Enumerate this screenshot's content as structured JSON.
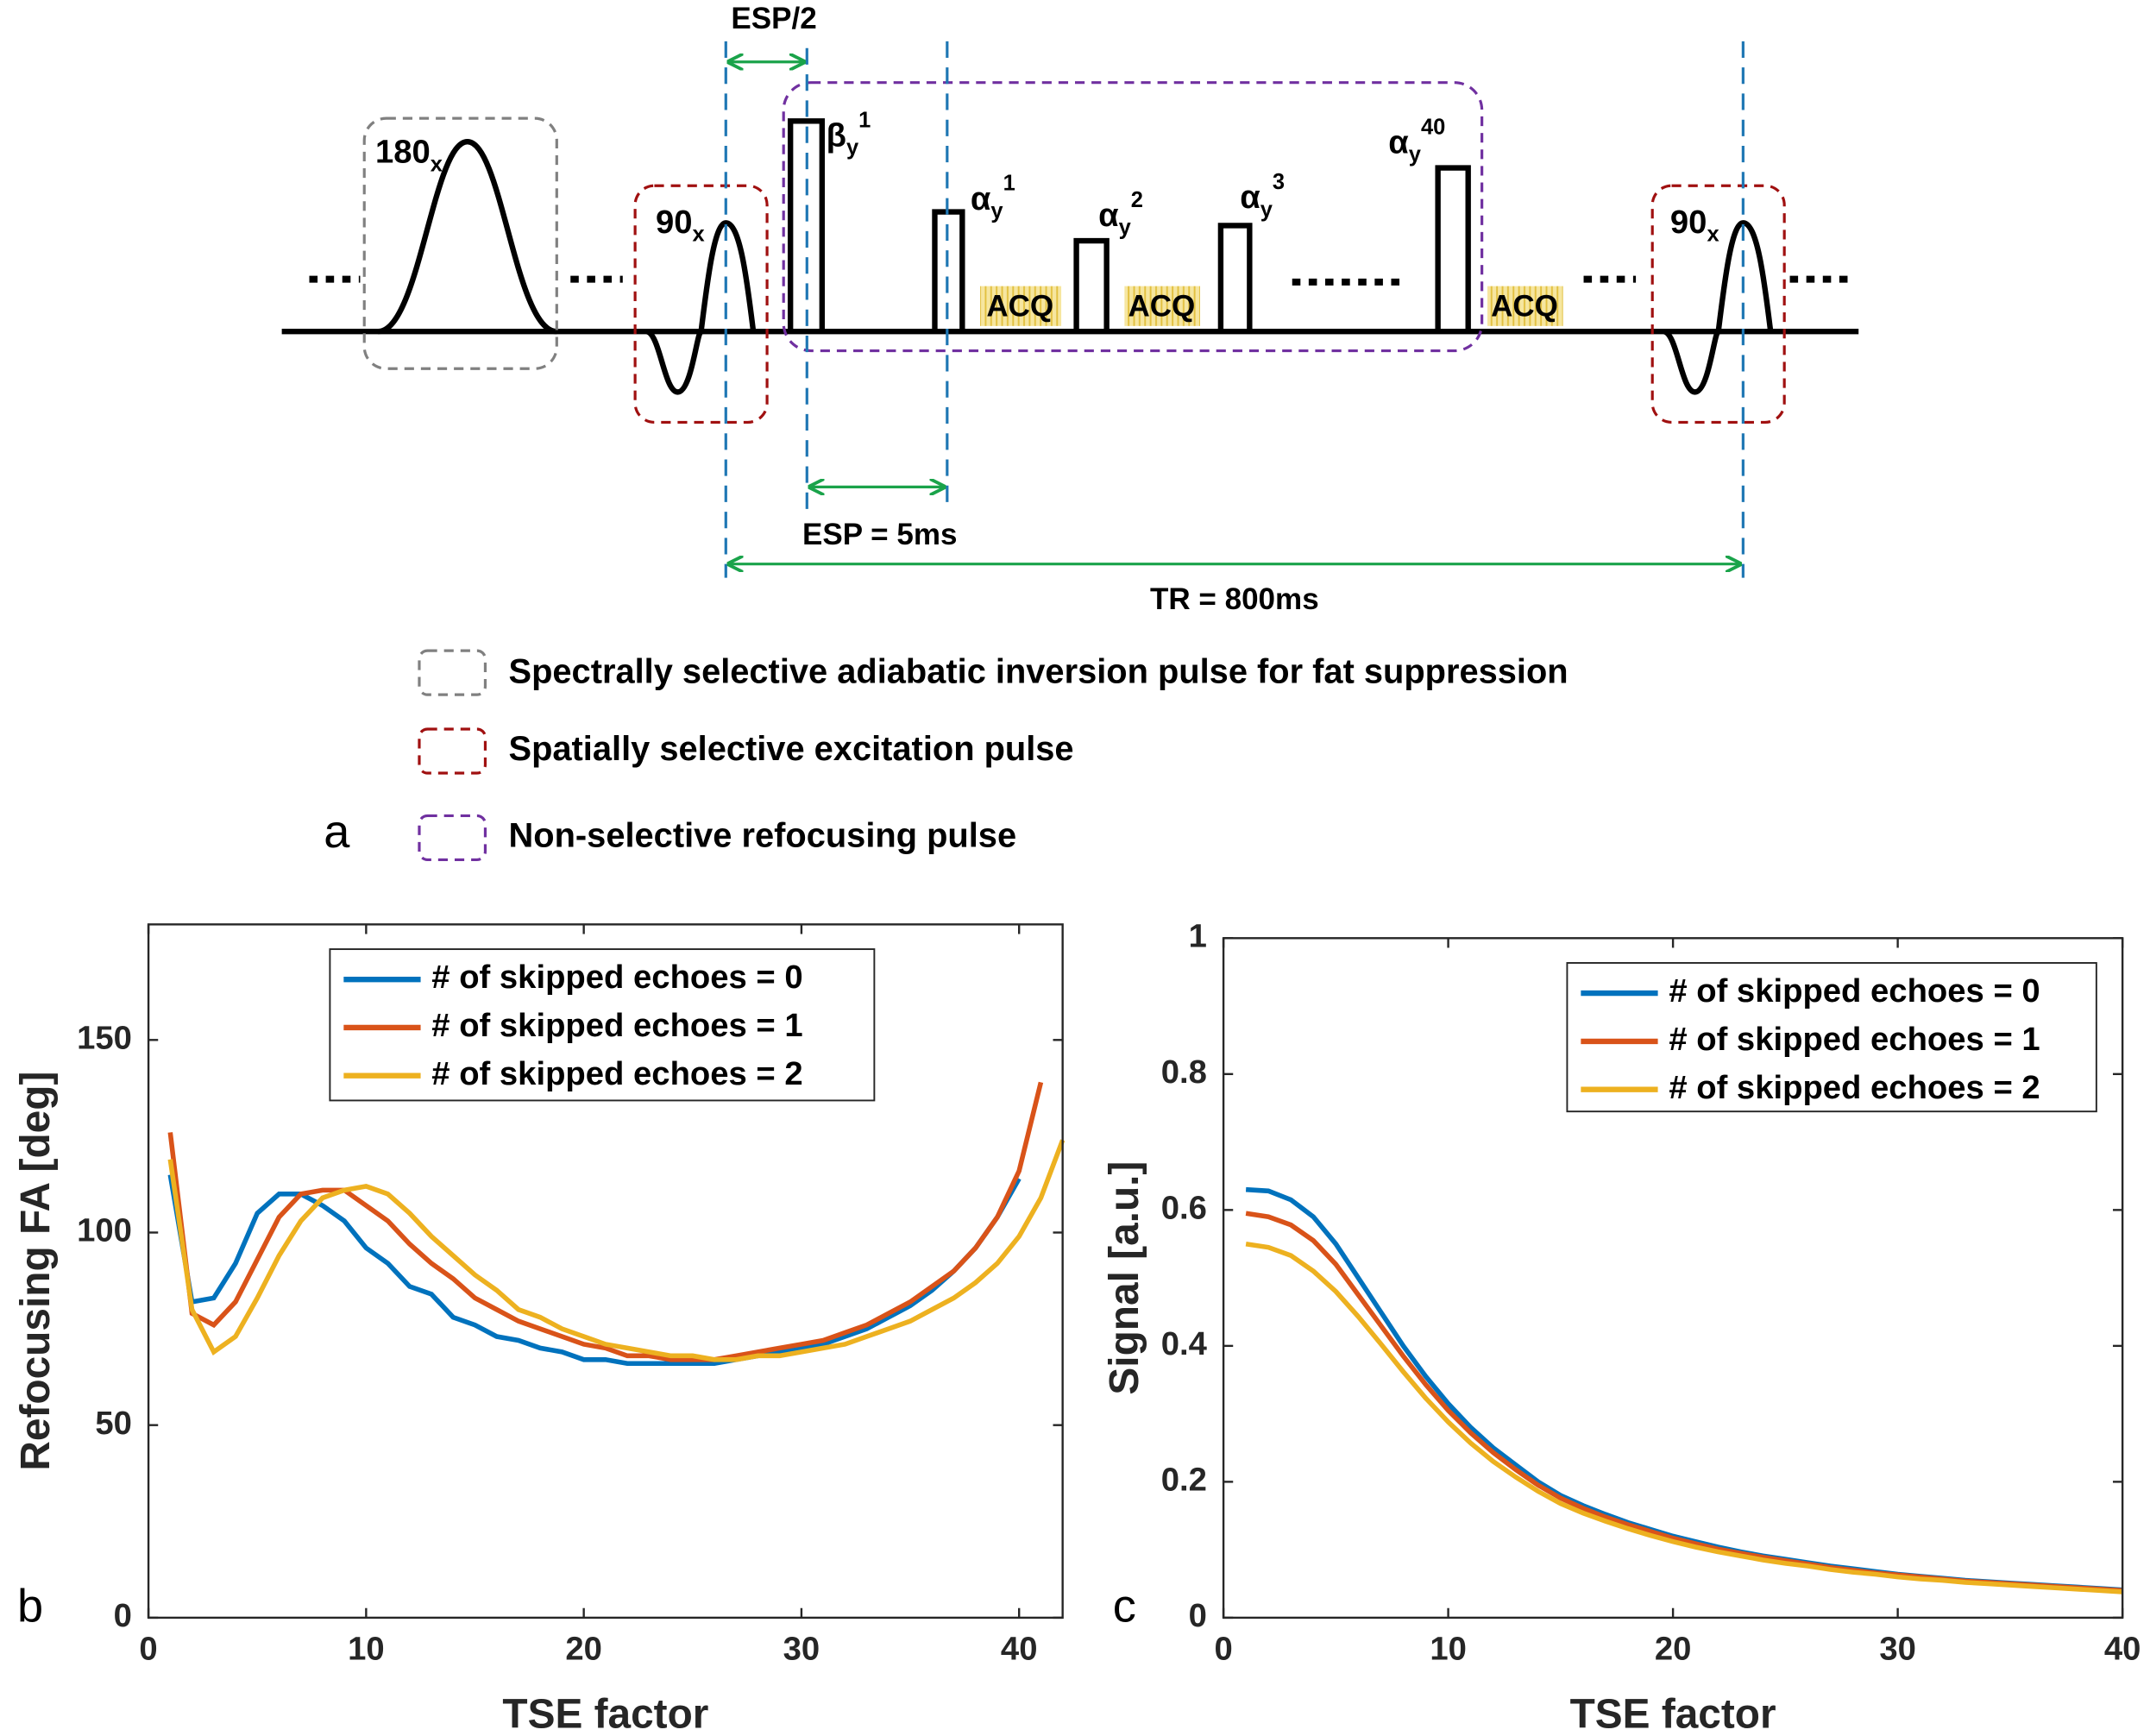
{
  "diagram": {
    "esp_half": "ESP/2",
    "esp": "ESP = 5ms",
    "tr": "TR = 800ms",
    "pulses": [
      {
        "base": "180",
        "sub": "x"
      },
      {
        "base": "90",
        "sub": "x"
      },
      {
        "base": "β",
        "sub": "y",
        "sup": "1"
      },
      {
        "base": "α",
        "sub": "y",
        "sup": "1"
      },
      {
        "base": "α",
        "sub": "y",
        "sup": "2"
      },
      {
        "base": "α",
        "sub": "y",
        "sup": "3"
      },
      {
        "base": "α",
        "sub": "y",
        "sup": "40"
      },
      {
        "base": "90",
        "sub": "x"
      }
    ],
    "acq": [
      "ACQ",
      "ACQ",
      "ACQ"
    ],
    "legend": [
      "Spectrally selective adiabatic inversion pulse for fat suppression",
      "Spatially selective excitation pulse",
      "Non-selective refocusing pulse"
    ],
    "panel_label": "a"
  },
  "chart_data": [
    {
      "type": "line",
      "panel_label": "b",
      "xlabel": "TSE factor",
      "ylabel": "Refocusing FA [deg]",
      "xlim": [
        0,
        42
      ],
      "ylim": [
        0,
        180
      ],
      "xticks": [
        0,
        10,
        20,
        30,
        40
      ],
      "yticks": [
        0,
        50,
        100,
        150
      ],
      "legend_position": "upper center",
      "series": [
        {
          "name": "# of skipped echoes = 0",
          "color": "#0072BD",
          "x": [
            1,
            2,
            3,
            4,
            5,
            6,
            7,
            8,
            9,
            10,
            11,
            12,
            13,
            14,
            15,
            16,
            17,
            18,
            19,
            20,
            21,
            22,
            23,
            24,
            25,
            26,
            27,
            28,
            29,
            30,
            31,
            32,
            33,
            34,
            35,
            36,
            37,
            38,
            39,
            40
          ],
          "values": [
            115,
            82,
            83,
            92,
            105,
            110,
            110,
            107,
            103,
            96,
            92,
            86,
            84,
            78,
            76,
            73,
            72,
            70,
            69,
            67,
            67,
            66,
            66,
            66,
            66,
            66,
            67,
            68,
            69,
            70,
            71,
            73,
            75,
            78,
            81,
            85,
            90,
            96,
            104,
            114
          ]
        },
        {
          "name": "# of skipped echoes = 1",
          "color": "#D95319",
          "x": [
            1,
            2,
            3,
            4,
            5,
            6,
            7,
            8,
            9,
            10,
            11,
            12,
            13,
            14,
            15,
            16,
            17,
            18,
            19,
            20,
            21,
            22,
            23,
            24,
            25,
            26,
            27,
            28,
            29,
            30,
            31,
            32,
            33,
            34,
            35,
            36,
            37,
            38,
            39,
            40,
            41
          ],
          "values": [
            126,
            79,
            76,
            82,
            93,
            104,
            110,
            111,
            111,
            107,
            103,
            97,
            92,
            88,
            83,
            80,
            77,
            75,
            73,
            71,
            70,
            68,
            68,
            67,
            67,
            67,
            68,
            69,
            70,
            71,
            72,
            74,
            76,
            79,
            82,
            86,
            90,
            96,
            104,
            116,
            139
          ]
        },
        {
          "name": "# of skipped echoes = 2",
          "color": "#EDB120",
          "x": [
            1,
            2,
            3,
            4,
            5,
            6,
            7,
            8,
            9,
            10,
            11,
            12,
            13,
            14,
            15,
            16,
            17,
            18,
            19,
            20,
            21,
            22,
            23,
            24,
            25,
            26,
            27,
            28,
            29,
            30,
            31,
            32,
            33,
            34,
            35,
            36,
            37,
            38,
            39,
            40,
            41,
            42
          ],
          "values": [
            119,
            80,
            69,
            73,
            83,
            94,
            103,
            109,
            111,
            112,
            110,
            105,
            99,
            94,
            89,
            85,
            80,
            78,
            75,
            73,
            71,
            70,
            69,
            68,
            68,
            67,
            67,
            68,
            68,
            69,
            70,
            71,
            73,
            75,
            77,
            80,
            83,
            87,
            92,
            99,
            109,
            124
          ]
        }
      ]
    },
    {
      "type": "line",
      "panel_label": "c",
      "xlabel": "TSE factor",
      "ylabel": "Signal [a.u.]",
      "xlim": [
        0,
        40
      ],
      "ylim": [
        0,
        1
      ],
      "xticks": [
        0,
        10,
        20,
        30,
        40
      ],
      "yticks": [
        0,
        0.2,
        0.4,
        0.6,
        0.8,
        1
      ],
      "legend_position": "upper right",
      "series": [
        {
          "name": "# of skipped echoes = 0",
          "color": "#0072BD",
          "x": [
            1,
            2,
            3,
            4,
            5,
            6,
            7,
            8,
            9,
            10,
            11,
            12,
            13,
            14,
            15,
            16,
            17,
            18,
            19,
            20,
            21,
            22,
            23,
            24,
            25,
            26,
            27,
            28,
            29,
            30,
            31,
            32,
            33,
            34,
            35,
            36,
            37,
            38,
            39,
            40
          ],
          "values": [
            0.63,
            0.628,
            0.615,
            0.59,
            0.55,
            0.5,
            0.45,
            0.4,
            0.355,
            0.315,
            0.28,
            0.25,
            0.225,
            0.2,
            0.18,
            0.165,
            0.152,
            0.14,
            0.13,
            0.12,
            0.112,
            0.104,
            0.097,
            0.091,
            0.086,
            0.081,
            0.076,
            0.072,
            0.068,
            0.064,
            0.061,
            0.058,
            0.055,
            0.053,
            0.051,
            0.049,
            0.047,
            0.045,
            0.043,
            0.041
          ]
        },
        {
          "name": "# of skipped echoes = 1",
          "color": "#D95319",
          "x": [
            1,
            2,
            3,
            4,
            5,
            6,
            7,
            8,
            9,
            10,
            11,
            12,
            13,
            14,
            15,
            16,
            17,
            18,
            19,
            20,
            21,
            22,
            23,
            24,
            25,
            26,
            27,
            28,
            29,
            30,
            31,
            32,
            33,
            34,
            35,
            36,
            37,
            38,
            39,
            40
          ],
          "values": [
            0.595,
            0.59,
            0.578,
            0.555,
            0.52,
            0.475,
            0.43,
            0.385,
            0.343,
            0.305,
            0.272,
            0.243,
            0.218,
            0.195,
            0.176,
            0.161,
            0.148,
            0.137,
            0.127,
            0.117,
            0.109,
            0.101,
            0.095,
            0.089,
            0.084,
            0.079,
            0.074,
            0.07,
            0.066,
            0.063,
            0.06,
            0.057,
            0.054,
            0.052,
            0.05,
            0.048,
            0.046,
            0.044,
            0.042,
            0.04
          ]
        },
        {
          "name": "# of skipped echoes = 2",
          "color": "#EDB120",
          "x": [
            1,
            2,
            3,
            4,
            5,
            6,
            7,
            8,
            9,
            10,
            11,
            12,
            13,
            14,
            15,
            16,
            17,
            18,
            19,
            20,
            21,
            22,
            23,
            24,
            25,
            26,
            27,
            28,
            29,
            30,
            31,
            32,
            33,
            34,
            35,
            36,
            37,
            38,
            39,
            40
          ],
          "values": [
            0.55,
            0.545,
            0.533,
            0.51,
            0.48,
            0.443,
            0.403,
            0.362,
            0.323,
            0.288,
            0.257,
            0.23,
            0.207,
            0.186,
            0.168,
            0.154,
            0.142,
            0.131,
            0.121,
            0.112,
            0.104,
            0.097,
            0.091,
            0.085,
            0.08,
            0.076,
            0.071,
            0.067,
            0.064,
            0.06,
            0.057,
            0.055,
            0.052,
            0.05,
            0.048,
            0.046,
            0.044,
            0.042,
            0.04,
            0.038
          ]
        }
      ]
    }
  ]
}
